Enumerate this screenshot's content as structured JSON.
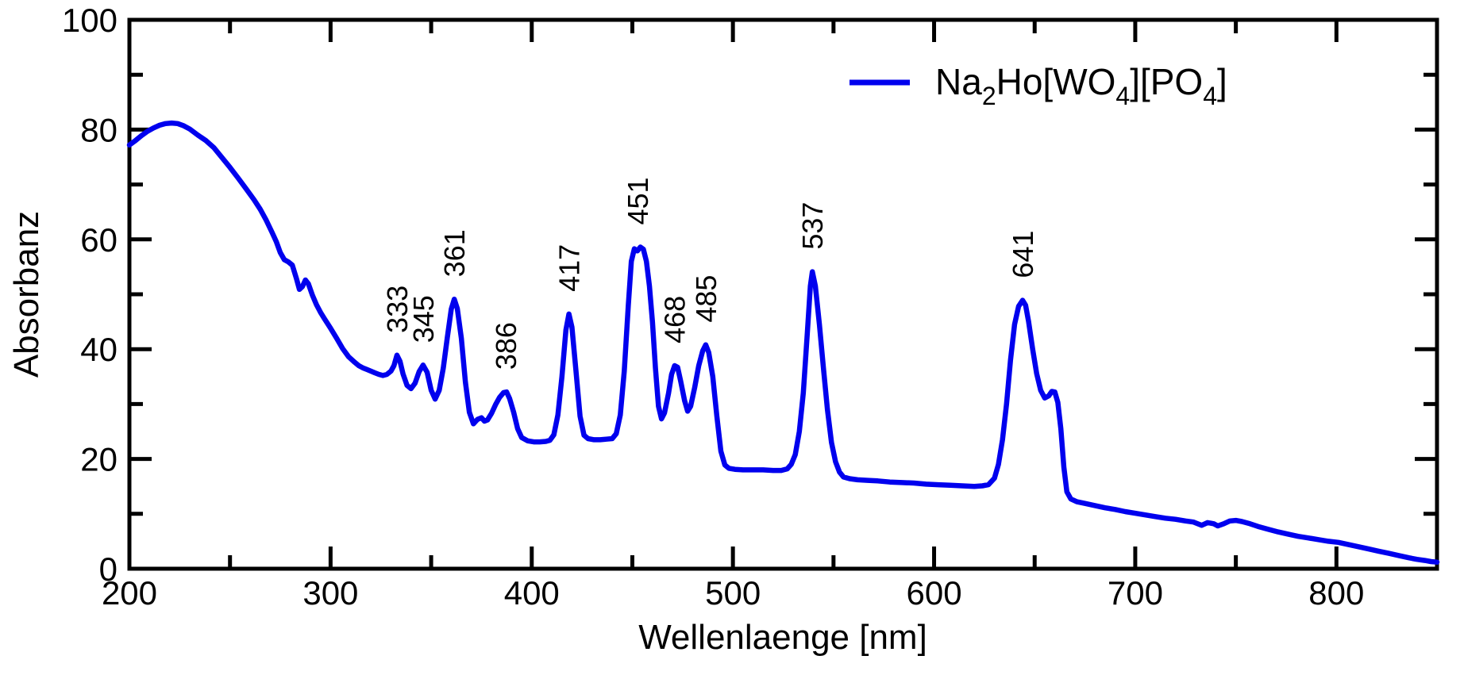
{
  "figure": {
    "background_color": "#ffffff",
    "frame_color": "#000000",
    "series_color": "#0000ee"
  },
  "legend": {
    "series_formula_plain": "Na2Ho[WO4][PO4]",
    "formula_parts": [
      {
        "t": "Na"
      },
      {
        "t": "2",
        "sub": true
      },
      {
        "t": "Ho[WO"
      },
      {
        "t": "4",
        "sub": true
      },
      {
        "t": "][PO"
      },
      {
        "t": "4",
        "sub": true
      },
      {
        "t": "]"
      }
    ]
  },
  "chart_data": {
    "type": "line",
    "title": "",
    "xlabel": "Wellenlaenge [nm]",
    "ylabel": "Absorbanz",
    "xlim": [
      200,
      850
    ],
    "ylim": [
      0,
      100
    ],
    "grid": false,
    "legend_position": "top-right",
    "x_ticks": {
      "major": [
        200,
        300,
        400,
        500,
        600,
        700,
        800
      ],
      "minor": [
        250,
        350,
        450,
        550,
        650,
        750
      ]
    },
    "y_ticks": {
      "major": [
        0,
        20,
        40,
        60,
        80,
        100
      ],
      "minor": [
        10,
        30,
        50,
        70,
        90
      ]
    },
    "peak_labels": [
      {
        "text": "333",
        "nm": 333,
        "a": 38.9
      },
      {
        "text": "345",
        "nm": 346,
        "a": 37.1
      },
      {
        "text": "361",
        "nm": 361.5,
        "a": 49.1
      },
      {
        "text": "386",
        "nm": 387,
        "a": 32.2
      },
      {
        "text": "417",
        "nm": 418.5,
        "a": 46.4
      },
      {
        "text": "451",
        "nm": 452.5,
        "a": 58.6
      },
      {
        "text": "468",
        "nm": 471,
        "a": 37.0
      },
      {
        "text": "485",
        "nm": 486.5,
        "a": 40.8
      },
      {
        "text": "537",
        "nm": 539.5,
        "a": 54.1
      },
      {
        "text": "641",
        "nm": 644,
        "a": 48.9
      }
    ],
    "series": [
      {
        "name": "Na2Ho[WO4][PO4]",
        "color": "#0000ee",
        "points": [
          [
            200,
            77.2
          ],
          [
            203,
            78.0
          ],
          [
            206,
            78.9
          ],
          [
            209,
            79.7
          ],
          [
            212,
            80.3
          ],
          [
            215,
            80.8
          ],
          [
            218,
            81.1
          ],
          [
            221,
            81.2
          ],
          [
            224,
            81.1
          ],
          [
            227,
            80.7
          ],
          [
            230,
            80.1
          ],
          [
            234,
            79.0
          ],
          [
            238,
            78.0
          ],
          [
            242,
            76.7
          ],
          [
            246,
            74.9
          ],
          [
            250,
            73.1
          ],
          [
            254,
            71.2
          ],
          [
            258,
            69.2
          ],
          [
            262,
            67.2
          ],
          [
            265,
            65.5
          ],
          [
            268,
            63.5
          ],
          [
            271,
            61.2
          ],
          [
            273,
            59.6
          ],
          [
            275,
            57.6
          ],
          [
            277,
            56.3
          ],
          [
            279,
            55.9
          ],
          [
            281,
            55.3
          ],
          [
            283,
            52.9
          ],
          [
            284.5,
            50.9
          ],
          [
            286,
            51.4
          ],
          [
            287.5,
            52.6
          ],
          [
            289,
            51.9
          ],
          [
            291,
            49.8
          ],
          [
            293,
            48.1
          ],
          [
            295,
            46.7
          ],
          [
            297,
            45.5
          ],
          [
            300,
            43.8
          ],
          [
            303,
            42.0
          ],
          [
            306,
            40.1
          ],
          [
            309,
            38.6
          ],
          [
            312,
            37.6
          ],
          [
            314,
            37.0
          ],
          [
            316,
            36.6
          ],
          [
            318,
            36.3
          ],
          [
            320,
            36.0
          ],
          [
            322,
            35.7
          ],
          [
            324,
            35.4
          ],
          [
            326,
            35.2
          ],
          [
            328,
            35.4
          ],
          [
            330,
            36.0
          ],
          [
            331.5,
            37.0
          ],
          [
            333,
            38.9
          ],
          [
            334.5,
            37.8
          ],
          [
            336,
            35.5
          ],
          [
            338,
            33.4
          ],
          [
            340,
            32.8
          ],
          [
            342,
            33.8
          ],
          [
            344,
            35.9
          ],
          [
            346,
            37.1
          ],
          [
            348,
            35.8
          ],
          [
            350,
            32.5
          ],
          [
            352,
            30.9
          ],
          [
            354,
            32.5
          ],
          [
            356,
            36.5
          ],
          [
            358,
            42.0
          ],
          [
            360,
            47.3
          ],
          [
            361.5,
            49.1
          ],
          [
            363,
            47.4
          ],
          [
            365,
            42.0
          ],
          [
            367,
            34.0
          ],
          [
            369,
            28.5
          ],
          [
            371,
            26.4
          ],
          [
            373,
            27.2
          ],
          [
            375,
            27.5
          ],
          [
            376.5,
            26.9
          ],
          [
            378,
            27.1
          ],
          [
            380,
            28.3
          ],
          [
            382,
            29.9
          ],
          [
            384,
            31.2
          ],
          [
            386,
            32.1
          ],
          [
            387.5,
            32.2
          ],
          [
            389,
            31.0
          ],
          [
            391,
            28.5
          ],
          [
            393,
            25.5
          ],
          [
            395,
            23.9
          ],
          [
            398,
            23.3
          ],
          [
            401,
            23.1
          ],
          [
            404,
            23.1
          ],
          [
            407,
            23.2
          ],
          [
            409,
            23.4
          ],
          [
            411,
            24.4
          ],
          [
            413,
            28.0
          ],
          [
            415,
            35.0
          ],
          [
            417,
            43.5
          ],
          [
            418.5,
            46.4
          ],
          [
            420,
            44.0
          ],
          [
            422,
            36.0
          ],
          [
            424,
            27.8
          ],
          [
            426,
            24.3
          ],
          [
            428,
            23.7
          ],
          [
            431,
            23.5
          ],
          [
            434,
            23.5
          ],
          [
            437,
            23.6
          ],
          [
            440,
            23.7
          ],
          [
            442,
            24.6
          ],
          [
            444,
            28.0
          ],
          [
            446,
            36.0
          ],
          [
            448,
            48.0
          ],
          [
            449.5,
            56.0
          ],
          [
            451,
            58.3
          ],
          [
            452.5,
            57.9
          ],
          [
            454,
            58.6
          ],
          [
            455.5,
            58.2
          ],
          [
            457,
            56.0
          ],
          [
            458.5,
            51.5
          ],
          [
            460,
            45.0
          ],
          [
            461.5,
            36.5
          ],
          [
            463,
            29.6
          ],
          [
            464.5,
            27.3
          ],
          [
            466,
            28.4
          ],
          [
            468,
            32.0
          ],
          [
            469.5,
            35.4
          ],
          [
            471,
            37.0
          ],
          [
            472.5,
            36.7
          ],
          [
            474,
            34.2
          ],
          [
            476,
            30.6
          ],
          [
            477.5,
            28.7
          ],
          [
            479,
            29.6
          ],
          [
            481,
            33.0
          ],
          [
            483,
            37.0
          ],
          [
            485,
            39.7
          ],
          [
            486.5,
            40.8
          ],
          [
            488,
            39.4
          ],
          [
            490,
            35.0
          ],
          [
            492,
            27.8
          ],
          [
            494,
            21.4
          ],
          [
            496,
            18.9
          ],
          [
            498,
            18.3
          ],
          [
            501,
            18.1
          ],
          [
            505,
            18.0
          ],
          [
            510,
            18.0
          ],
          [
            515,
            18.0
          ],
          [
            520,
            17.9
          ],
          [
            524,
            17.9
          ],
          [
            527,
            18.2
          ],
          [
            529,
            19.0
          ],
          [
            531,
            20.8
          ],
          [
            533,
            25.0
          ],
          [
            535,
            32.0
          ],
          [
            537,
            43.0
          ],
          [
            538.5,
            51.5
          ],
          [
            539.5,
            54.1
          ],
          [
            541,
            51.5
          ],
          [
            543,
            44.5
          ],
          [
            545,
            36.5
          ],
          [
            547,
            29.0
          ],
          [
            549,
            23.0
          ],
          [
            551,
            19.5
          ],
          [
            553,
            17.6
          ],
          [
            555,
            16.7
          ],
          [
            558,
            16.4
          ],
          [
            562,
            16.2
          ],
          [
            567,
            16.1
          ],
          [
            572,
            16.0
          ],
          [
            578,
            15.8
          ],
          [
            584,
            15.7
          ],
          [
            590,
            15.6
          ],
          [
            596,
            15.4
          ],
          [
            602,
            15.3
          ],
          [
            608,
            15.2
          ],
          [
            614,
            15.1
          ],
          [
            620,
            15.0
          ],
          [
            624,
            15.1
          ],
          [
            627,
            15.3
          ],
          [
            630,
            16.5
          ],
          [
            632,
            19.0
          ],
          [
            634,
            23.5
          ],
          [
            636,
            30.0
          ],
          [
            638,
            38.0
          ],
          [
            640,
            44.5
          ],
          [
            642,
            47.8
          ],
          [
            644,
            48.9
          ],
          [
            645.5,
            48.0
          ],
          [
            647,
            45.0
          ],
          [
            649,
            40.0
          ],
          [
            651,
            35.5
          ],
          [
            653,
            32.5
          ],
          [
            655,
            31.1
          ],
          [
            657,
            31.5
          ],
          [
            658.5,
            32.3
          ],
          [
            660,
            32.2
          ],
          [
            661.5,
            30.3
          ],
          [
            663,
            25.5
          ],
          [
            664.5,
            18.5
          ],
          [
            666,
            14.0
          ],
          [
            668,
            12.7
          ],
          [
            671,
            12.2
          ],
          [
            675,
            11.9
          ],
          [
            680,
            11.5
          ],
          [
            685,
            11.1
          ],
          [
            690,
            10.8
          ],
          [
            695,
            10.4
          ],
          [
            700,
            10.1
          ],
          [
            705,
            9.8
          ],
          [
            710,
            9.5
          ],
          [
            715,
            9.2
          ],
          [
            720,
            9.0
          ],
          [
            725,
            8.7
          ],
          [
            729,
            8.5
          ],
          [
            733,
            7.9
          ],
          [
            736,
            8.4
          ],
          [
            739,
            8.2
          ],
          [
            741,
            7.8
          ],
          [
            744,
            8.2
          ],
          [
            747,
            8.7
          ],
          [
            750,
            8.8
          ],
          [
            753,
            8.6
          ],
          [
            757,
            8.2
          ],
          [
            761,
            7.7
          ],
          [
            766,
            7.2
          ],
          [
            771,
            6.7
          ],
          [
            776,
            6.3
          ],
          [
            781,
            5.9
          ],
          [
            786,
            5.6
          ],
          [
            791,
            5.3
          ],
          [
            796,
            5.0
          ],
          [
            801,
            4.8
          ],
          [
            806,
            4.4
          ],
          [
            811,
            4.0
          ],
          [
            816,
            3.6
          ],
          [
            821,
            3.2
          ],
          [
            826,
            2.8
          ],
          [
            831,
            2.4
          ],
          [
            836,
            2.0
          ],
          [
            840,
            1.7
          ],
          [
            844,
            1.5
          ],
          [
            847,
            1.3
          ],
          [
            850,
            1.2
          ]
        ]
      }
    ]
  }
}
